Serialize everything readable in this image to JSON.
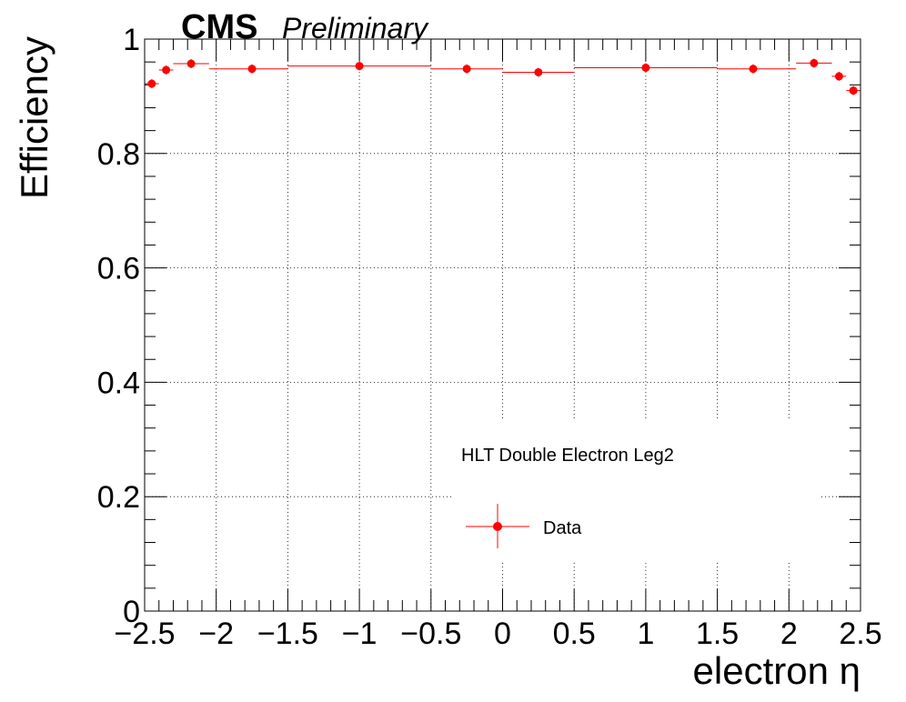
{
  "chart_data": {
    "type": "scatter",
    "title": "",
    "header": {
      "experiment": "CMS",
      "status": "Preliminary"
    },
    "xlabel": "electron η",
    "ylabel": "Efficiency",
    "xlim": [
      -2.5,
      2.5
    ],
    "ylim": [
      0,
      1
    ],
    "x_ticks": [
      -2.5,
      -2,
      -1.5,
      -1,
      -0.5,
      0,
      0.5,
      1,
      1.5,
      2,
      2.5
    ],
    "x_tick_labels": [
      "−2.5",
      "−2",
      "−1.5",
      "−1",
      "−0.5",
      "0",
      "0.5",
      "1",
      "1.5",
      "2",
      "2.5"
    ],
    "y_ticks": [
      0,
      0.2,
      0.4,
      0.6,
      0.8,
      1
    ],
    "y_tick_labels": [
      "0",
      "0.2",
      "0.4",
      "0.6",
      "0.8",
      "1"
    ],
    "grid": true,
    "legend": {
      "header": "HLT Double Electron Leg2",
      "placement": "bottom-center"
    },
    "series": [
      {
        "name": "Data",
        "color": "#ff0000",
        "points": [
          {
            "x": -2.45,
            "xlo": -2.5,
            "xhi": -2.4,
            "y": 0.922
          },
          {
            "x": -2.35,
            "xlo": -2.4,
            "xhi": -2.3,
            "y": 0.946
          },
          {
            "x": -2.175,
            "xlo": -2.3,
            "xhi": -2.05,
            "y": 0.957
          },
          {
            "x": -1.75,
            "xlo": -2.05,
            "xhi": -1.5,
            "y": 0.948
          },
          {
            "x": -1.0,
            "xlo": -1.5,
            "xhi": -0.5,
            "y": 0.953
          },
          {
            "x": -0.25,
            "xlo": -0.5,
            "xhi": 0.0,
            "y": 0.948
          },
          {
            "x": 0.25,
            "xlo": 0.0,
            "xhi": 0.5,
            "y": 0.942
          },
          {
            "x": 1.0,
            "xlo": 0.5,
            "xhi": 1.5,
            "y": 0.95
          },
          {
            "x": 1.75,
            "xlo": 1.5,
            "xhi": 2.05,
            "y": 0.948
          },
          {
            "x": 2.175,
            "xlo": 2.05,
            "xhi": 2.3,
            "y": 0.958
          },
          {
            "x": 2.35,
            "xlo": 2.3,
            "xhi": 2.4,
            "y": 0.935
          },
          {
            "x": 2.45,
            "xlo": 2.4,
            "xhi": 2.5,
            "y": 0.91
          }
        ]
      }
    ]
  }
}
